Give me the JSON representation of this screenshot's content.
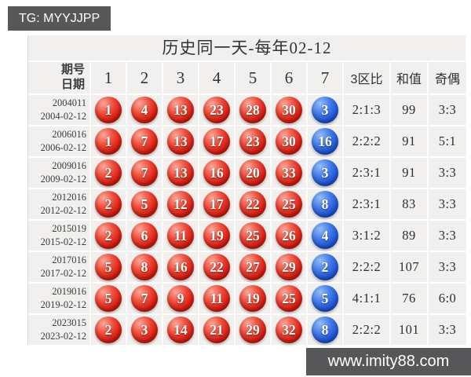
{
  "badge": {
    "text": "TG: MYYJJPP"
  },
  "title": "历史同一天-每年02-12",
  "table": {
    "header": {
      "issue_label": "期号",
      "date_label": "日期",
      "ball_columns": [
        "1",
        "2",
        "3",
        "4",
        "5",
        "6",
        "7"
      ],
      "stat_columns": [
        "3区比",
        "和值",
        "奇偶"
      ]
    },
    "rows": [
      {
        "issue": "2004011",
        "date": "2004-02-12",
        "reds": [
          "1",
          "4",
          "13",
          "23",
          "28",
          "30"
        ],
        "blue": "3",
        "zone_ratio": "2:1:3",
        "sum": "99",
        "odd_even": "3:3"
      },
      {
        "issue": "2006016",
        "date": "2006-02-12",
        "reds": [
          "1",
          "7",
          "13",
          "17",
          "23",
          "30"
        ],
        "blue": "16",
        "zone_ratio": "2:2:2",
        "sum": "91",
        "odd_even": "5:1"
      },
      {
        "issue": "2009016",
        "date": "2009-02-12",
        "reds": [
          "2",
          "7",
          "13",
          "16",
          "20",
          "33"
        ],
        "blue": "3",
        "zone_ratio": "2:3:1",
        "sum": "91",
        "odd_even": "3:3"
      },
      {
        "issue": "2012016",
        "date": "2012-02-12",
        "reds": [
          "2",
          "5",
          "12",
          "17",
          "22",
          "25"
        ],
        "blue": "8",
        "zone_ratio": "2:3:1",
        "sum": "83",
        "odd_even": "3:3"
      },
      {
        "issue": "2015019",
        "date": "2015-02-12",
        "reds": [
          "2",
          "6",
          "11",
          "19",
          "25",
          "26"
        ],
        "blue": "4",
        "zone_ratio": "3:1:2",
        "sum": "89",
        "odd_even": "3:3"
      },
      {
        "issue": "2017016",
        "date": "2017-02-12",
        "reds": [
          "5",
          "8",
          "16",
          "22",
          "27",
          "29"
        ],
        "blue": "2",
        "zone_ratio": "2:2:2",
        "sum": "107",
        "odd_even": "3:3"
      },
      {
        "issue": "2019016",
        "date": "2019-02-12",
        "reds": [
          "5",
          "7",
          "9",
          "11",
          "19",
          "25"
        ],
        "blue": "5",
        "zone_ratio": "4:1:1",
        "sum": "76",
        "odd_even": "6:0"
      },
      {
        "issue": "2023015",
        "date": "2023-02-12",
        "reds": [
          "2",
          "3",
          "14",
          "21",
          "29",
          "32"
        ],
        "blue": "8",
        "zone_ratio": "2:2:2",
        "sum": "101",
        "odd_even": "3:3"
      }
    ]
  },
  "watermark": "www.imity88.com",
  "colors": {
    "red_ball": "#d21b0f",
    "blue_ball": "#1d4fd0",
    "bar_background": "#57575a",
    "cell_background": "#f1f0ee"
  }
}
